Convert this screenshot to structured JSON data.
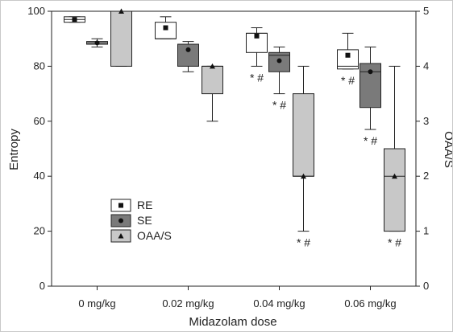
{
  "chart_data": {
    "type": "box",
    "title": "",
    "xlabel": "Midazolam dose",
    "ylabel_left": "Entropy",
    "ylabel_right": "OAA/S",
    "categories": [
      "0 mg/kg",
      "0.02 mg/kg",
      "0.04 mg/kg",
      "0.06 mg/kg"
    ],
    "left_axis": {
      "min": 0,
      "max": 100,
      "ticks": [
        "0",
        "20",
        "40",
        "60",
        "80",
        "100"
      ],
      "tick_values": [
        0,
        20,
        40,
        60,
        80,
        100
      ]
    },
    "right_axis": {
      "min": 0,
      "max": 5,
      "ticks": [
        "0",
        "1",
        "2",
        "3",
        "4",
        "5"
      ],
      "tick_values": [
        0,
        1,
        2,
        3,
        4,
        5
      ]
    },
    "grid": false,
    "legend_position": "lower-left",
    "series": [
      {
        "name": "RE",
        "axis": "left",
        "fill": "#ffffff",
        "marker": "square",
        "boxes": [
          {
            "whisker_low": 96,
            "q1": 96,
            "q3": 98,
            "whisker_high": 98,
            "median": 97,
            "mean": 97
          },
          {
            "whisker_low": 90,
            "q1": 90,
            "q3": 96,
            "whisker_high": 98,
            "median": 90,
            "mean": 94
          },
          {
            "whisker_low": 80,
            "q1": 85,
            "q3": 92,
            "whisker_high": 94,
            "median": 92,
            "mean": 91
          },
          {
            "whisker_low": 79,
            "q1": 79,
            "q3": 86,
            "whisker_high": 92,
            "median": 80,
            "mean": 84
          }
        ]
      },
      {
        "name": "SE",
        "axis": "left",
        "fill": "#7a7a7a",
        "marker": "circle",
        "boxes": [
          {
            "whisker_low": 87,
            "q1": 88,
            "q3": 89,
            "whisker_high": 90,
            "median": 88,
            "mean": 88.5
          },
          {
            "whisker_low": 78,
            "q1": 80,
            "q3": 88,
            "whisker_high": 89,
            "median": 88,
            "mean": 86
          },
          {
            "whisker_low": 70,
            "q1": 78,
            "q3": 85,
            "whisker_high": 87,
            "median": 84,
            "mean": 82
          },
          {
            "whisker_low": 57,
            "q1": 65,
            "q3": 81,
            "whisker_high": 87,
            "median": 78,
            "mean": 78
          }
        ]
      },
      {
        "name": "OAA/S",
        "axis": "right",
        "fill": "#c8c8c8",
        "marker": "triangle",
        "boxes": [
          {
            "whisker_low": 4,
            "q1": 4,
            "q3": 5,
            "whisker_high": 5,
            "median": 5,
            "mean": 5
          },
          {
            "whisker_low": 3,
            "q1": 3.5,
            "q3": 4,
            "whisker_high": 4,
            "median": 4,
            "mean": 4
          },
          {
            "whisker_low": 1,
            "q1": 2,
            "q3": 3.5,
            "whisker_high": 4,
            "median": 2,
            "mean": 2
          },
          {
            "whisker_low": 1,
            "q1": 1,
            "q3": 2.5,
            "whisker_high": 4,
            "median": 2,
            "mean": 2
          }
        ]
      }
    ],
    "annotations": [
      {
        "text": "* #",
        "category": 2,
        "series": 0
      },
      {
        "text": "* #",
        "category": 2,
        "series": 1
      },
      {
        "text": "* #",
        "category": 2,
        "series": 2
      },
      {
        "text": "* #",
        "category": 3,
        "series": 0
      },
      {
        "text": "* #",
        "category": 3,
        "series": 1
      },
      {
        "text": "* #",
        "category": 3,
        "series": 2
      }
    ]
  }
}
